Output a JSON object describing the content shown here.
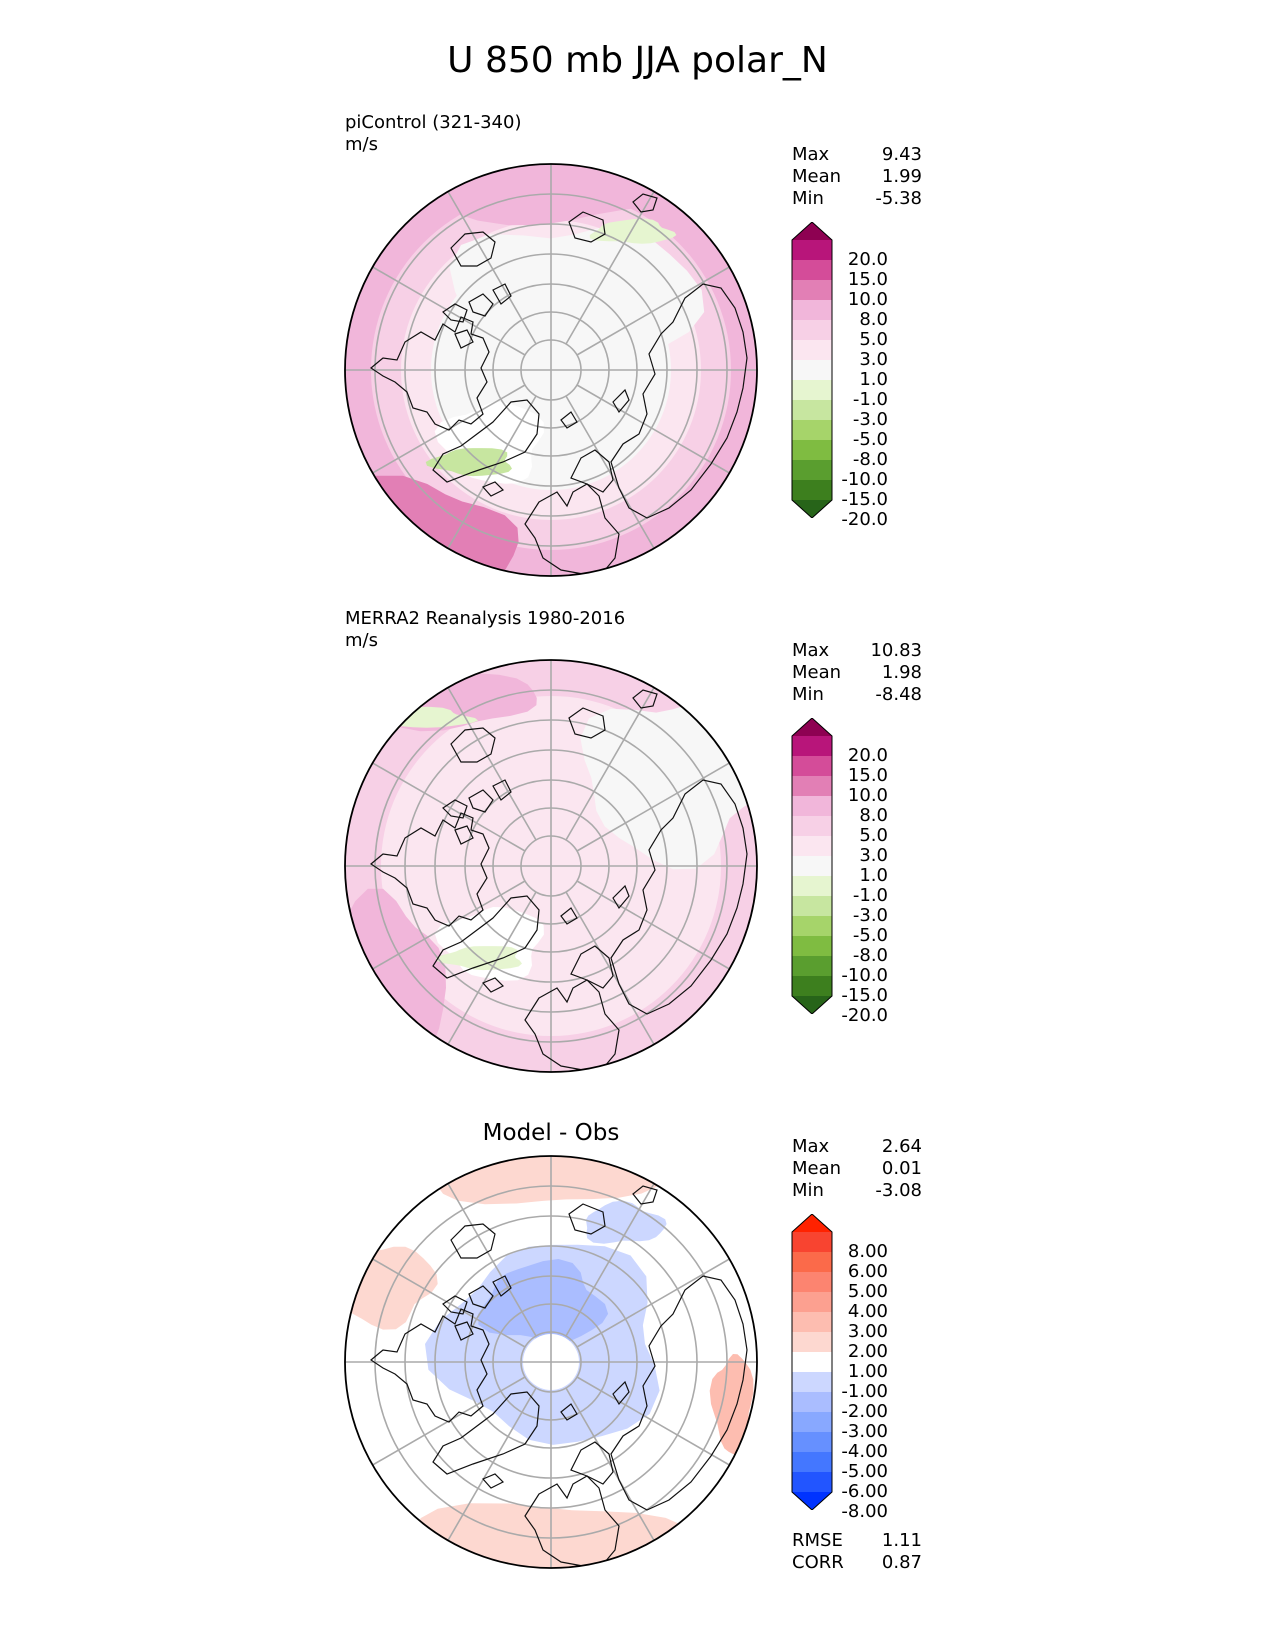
{
  "title": "U 850 mb JJA polar_N",
  "colors": {
    "pink_scale": [
      "#276419",
      "#3d7f1e",
      "#5a9e2f",
      "#7fbc41",
      "#a6d46a",
      "#c7e6a0",
      "#e6f5d0",
      "#f7f7f7",
      "#fbe6f0",
      "#f7d0e6",
      "#f1b6da",
      "#e27fb5",
      "#d44c99",
      "#b8157a",
      "#8e0152"
    ],
    "diff_scale": [
      "#0033ff",
      "#2255ff",
      "#4477ff",
      "#6690ff",
      "#88a8ff",
      "#aabdff",
      "#ccd7ff",
      "#ffffff",
      "#fdd8d0",
      "#fdbdb0",
      "#fca090",
      "#fc8470",
      "#fb6a4a",
      "#f84430",
      "#ff2200"
    ]
  },
  "panels": [
    {
      "label": "piControl (321-340)",
      "units": "m/s",
      "stats": [
        {
          "k": "Max",
          "v": "9.43"
        },
        {
          "k": "Mean",
          "v": "1.99"
        },
        {
          "k": "Min",
          "v": "-5.38"
        }
      ],
      "levels": [
        "20.0",
        "15.0",
        "10.0",
        "8.0",
        "5.0",
        "3.0",
        "1.0",
        "-1.0",
        "-3.0",
        "-5.0",
        "-8.0",
        "-10.0",
        "-15.0",
        "-20.0"
      ]
    },
    {
      "label": "MERRA2 Reanalysis 1980-2016",
      "units": "m/s",
      "stats": [
        {
          "k": "Max",
          "v": "10.83"
        },
        {
          "k": "Mean",
          "v": "1.98"
        },
        {
          "k": "Min",
          "v": "-8.48"
        }
      ],
      "levels": [
        "20.0",
        "15.0",
        "10.0",
        "8.0",
        "5.0",
        "3.0",
        "1.0",
        "-1.0",
        "-3.0",
        "-5.0",
        "-8.0",
        "-10.0",
        "-15.0",
        "-20.0"
      ]
    },
    {
      "title": "Model - Obs",
      "stats": [
        {
          "k": "Max",
          "v": "2.64"
        },
        {
          "k": "Mean",
          "v": "0.01"
        },
        {
          "k": "Min",
          "v": "-3.08"
        }
      ],
      "levels": [
        "8.00",
        "6.00",
        "5.00",
        "4.00",
        "3.00",
        "2.00",
        "1.00",
        "-1.00",
        "-2.00",
        "-3.00",
        "-4.00",
        "-5.00",
        "-6.00",
        "-8.00"
      ],
      "metrics": [
        {
          "k": "RMSE",
          "v": "1.11"
        },
        {
          "k": "CORR",
          "v": "0.87"
        }
      ]
    }
  ],
  "chart_data": {
    "type": "heatmap",
    "title": "U 850 mb JJA polar_N",
    "projection": "north polar stereographic",
    "maps": [
      {
        "name": "piControl (321-340)",
        "units": "m/s",
        "max": 9.43,
        "mean": 1.99,
        "min": -5.38,
        "levels": [
          -20,
          -15,
          -10,
          -8,
          -5,
          -3,
          -1,
          1,
          3,
          5,
          8,
          10,
          15,
          20
        ]
      },
      {
        "name": "MERRA2 Reanalysis 1980-2016",
        "units": "m/s",
        "max": 10.83,
        "mean": 1.98,
        "min": -8.48,
        "levels": [
          -20,
          -15,
          -10,
          -8,
          -5,
          -3,
          -1,
          1,
          3,
          5,
          8,
          10,
          15,
          20
        ]
      },
      {
        "name": "Model - Obs",
        "max": 2.64,
        "mean": 0.01,
        "min": -3.08,
        "rmse": 1.11,
        "corr": 0.87,
        "levels": [
          -8,
          -6,
          -5,
          -4,
          -3,
          -2,
          -1,
          1,
          2,
          3,
          4,
          5,
          6,
          8
        ]
      }
    ]
  }
}
